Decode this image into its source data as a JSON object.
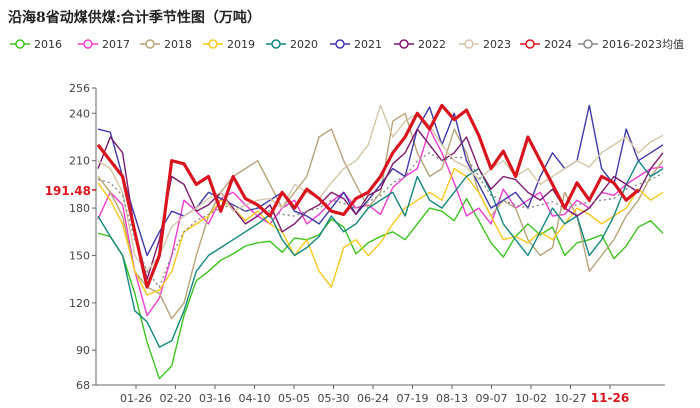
{
  "chart_data": {
    "type": "line",
    "title": "沿海8省动煤供煤:合计季节性图（万吨）",
    "ylim": [
      68,
      256
    ],
    "y_ticks": [
      68,
      90,
      120,
      150,
      180,
      210,
      240,
      256
    ],
    "x_ticks": [
      "01-26",
      "02-20",
      "03-16",
      "04-10",
      "05-05",
      "05-30",
      "06-24",
      "07-19",
      "08-13",
      "09-07",
      "10-02",
      "10-27",
      "11-26"
    ],
    "highlight_x_tick": "11-26",
    "current_value_label": "191.48",
    "series": [
      {
        "name": "2016",
        "color": "#3dc21f",
        "values": [
          164,
          162,
          150,
          126,
          95,
          72,
          80,
          112,
          134,
          140,
          147,
          151,
          156,
          158,
          159,
          152,
          161,
          160,
          163,
          173,
          168,
          151,
          158,
          162,
          165,
          160,
          170,
          180,
          178,
          172,
          186,
          172,
          158,
          149,
          162,
          170,
          163,
          168,
          150,
          158,
          160,
          163,
          148,
          156,
          168,
          172,
          164
        ]
      },
      {
        "name": "2017",
        "color": "#f03ccf",
        "values": [
          173,
          190,
          182,
          140,
          112,
          123,
          150,
          185,
          178,
          170,
          186,
          190,
          182,
          175,
          170,
          180,
          185,
          170,
          176,
          184,
          190,
          180,
          182,
          176,
          193,
          200,
          205,
          230,
          215,
          196,
          175,
          180,
          170,
          192,
          180,
          185,
          190,
          175,
          176,
          185,
          180,
          190,
          188,
          195,
          200,
          205,
          206
        ]
      },
      {
        "name": "2018",
        "color": "#b8a37a",
        "values": [
          200,
          190,
          175,
          140,
          130,
          126,
          110,
          120,
          150,
          175,
          190,
          200,
          205,
          210,
          195,
          180,
          190,
          200,
          225,
          230,
          210,
          195,
          180,
          190,
          235,
          240,
          215,
          200,
          205,
          230,
          215,
          190,
          175,
          185,
          180,
          160,
          150,
          155,
          190,
          175,
          140,
          150,
          160,
          175,
          185,
          200,
          210
        ]
      },
      {
        "name": "2019",
        "color": "#f7c81e",
        "values": [
          196,
          185,
          170,
          140,
          125,
          128,
          140,
          165,
          170,
          175,
          185,
          180,
          172,
          178,
          170,
          165,
          150,
          160,
          140,
          130,
          155,
          160,
          150,
          158,
          170,
          180,
          185,
          190,
          185,
          205,
          200,
          190,
          175,
          160,
          162,
          158,
          165,
          160,
          170,
          180,
          176,
          170,
          175,
          180,
          192,
          185,
          190
        ]
      },
      {
        "name": "2020",
        "color": "#14877e",
        "values": [
          175,
          162,
          150,
          115,
          108,
          92,
          96,
          115,
          140,
          150,
          155,
          160,
          165,
          170,
          176,
          160,
          150,
          155,
          162,
          175,
          165,
          170,
          180,
          185,
          190,
          175,
          200,
          185,
          180,
          190,
          200,
          205,
          190,
          170,
          160,
          150,
          165,
          180,
          170,
          175,
          150,
          160,
          175,
          195,
          210,
          200,
          205
        ]
      },
      {
        "name": "2021",
        "color": "#3f3aa8",
        "values": [
          230,
          228,
          200,
          175,
          150,
          165,
          178,
          175,
          180,
          190,
          186,
          182,
          178,
          180,
          185,
          190,
          178,
          175,
          170,
          180,
          190,
          176,
          185,
          195,
          205,
          200,
          230,
          244,
          220,
          240,
          210,
          195,
          180,
          185,
          190,
          180,
          200,
          215,
          205,
          210,
          245,
          205,
          195,
          230,
          210,
          215,
          220
        ]
      },
      {
        "name": "2022",
        "color": "#7c1a6d",
        "values": [
          205,
          225,
          215,
          165,
          135,
          160,
          200,
          195,
          178,
          182,
          190,
          180,
          170,
          175,
          182,
          165,
          170,
          178,
          182,
          190,
          186,
          176,
          188,
          192,
          208,
          215,
          230,
          220,
          210,
          215,
          225,
          205,
          192,
          200,
          198,
          190,
          185,
          192,
          180,
          175,
          180,
          190,
          200,
          195,
          190,
          205,
          215
        ]
      },
      {
        "name": "2023",
        "color": "#d6c6a8",
        "values": [
          210,
          205,
          190,
          150,
          140,
          150,
          168,
          175,
          180,
          186,
          190,
          178,
          182,
          185,
          186,
          180,
          195,
          190,
          186,
          196,
          205,
          210,
          220,
          245,
          225,
          235,
          240,
          232,
          220,
          210,
          206,
          198,
          205,
          210,
          200,
          205,
          195,
          200,
          205,
          210,
          206,
          215,
          220,
          225,
          215,
          222,
          226
        ]
      },
      {
        "name": "2024",
        "color": "#d9141e",
        "values": [
          220,
          210,
          200,
          165,
          130,
          150,
          210,
          208,
          195,
          200,
          178,
          200,
          186,
          182,
          175,
          190,
          180,
          192,
          186,
          178,
          176,
          186,
          190,
          200,
          215,
          225,
          240,
          230,
          245,
          236,
          242,
          226,
          205,
          216,
          200,
          225,
          210,
          195,
          180,
          196,
          185,
          200,
          196,
          185,
          191.48
        ]
      },
      {
        "name": "2016-2023均值",
        "color": "#888888",
        "values": [
          198,
          196,
          188,
          160,
          140,
          130,
          150,
          165,
          172,
          176,
          180,
          182,
          178,
          180,
          178,
          176,
          175,
          178,
          180,
          185,
          183,
          180,
          184,
          188,
          196,
          200,
          210,
          215,
          210,
          212,
          212,
          200,
          188,
          185,
          182,
          180,
          182,
          184,
          180,
          182,
          184,
          185,
          186,
          192,
          195,
          198,
          202
        ]
      }
    ]
  }
}
